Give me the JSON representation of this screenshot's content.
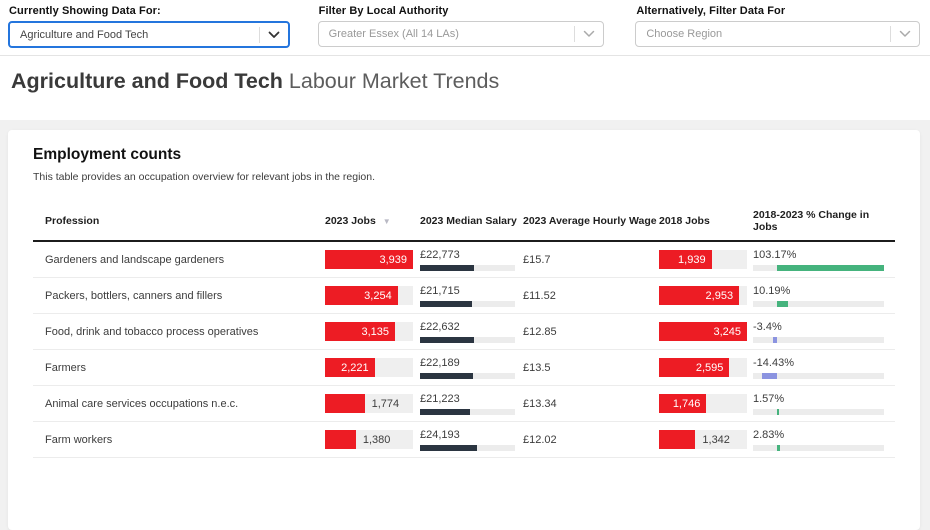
{
  "filters": {
    "sector": {
      "label": "Currently Showing Data For:",
      "value": "Agriculture and Food Tech"
    },
    "local_authority": {
      "label": "Filter By Local Authority",
      "value": "Greater Essex (All 14 LAs)"
    },
    "region": {
      "label": "Alternatively, Filter Data For",
      "placeholder": "Choose Region"
    }
  },
  "page_title": {
    "highlight": "Agriculture and Food Tech",
    "rest": " Labour Market Trends"
  },
  "card": {
    "title": "Employment counts",
    "subtitle": "This table provides an occupation overview for relevant jobs in the region."
  },
  "chart_data": {
    "type": "table",
    "columns": [
      "Profession",
      "2023 Jobs",
      "2023 Median Salary",
      "2023 Average Hourly Wage",
      "2018 Jobs",
      "2018-2023 % Change in Jobs"
    ],
    "sorted_by": "2023 Jobs",
    "sort_direction": "desc",
    "rows": [
      {
        "profession": "Gardeners and landscape gardeners",
        "jobs_2023": 3939,
        "jobs_2023_display": "3,939",
        "median_salary": 22773,
        "median_salary_display": "£22,773",
        "hourly_wage_display": "£15.7",
        "jobs_2018": 1939,
        "jobs_2018_display": "1,939",
        "pct_change": 103.17,
        "pct_change_display": "103.17%"
      },
      {
        "profession": "Packers, bottlers, canners and fillers",
        "jobs_2023": 3254,
        "jobs_2023_display": "3,254",
        "median_salary": 21715,
        "median_salary_display": "£21,715",
        "hourly_wage_display": "£11.52",
        "jobs_2018": 2953,
        "jobs_2018_display": "2,953",
        "pct_change": 10.19,
        "pct_change_display": "10.19%"
      },
      {
        "profession": "Food, drink and tobacco process operatives",
        "jobs_2023": 3135,
        "jobs_2023_display": "3,135",
        "median_salary": 22632,
        "median_salary_display": "£22,632",
        "hourly_wage_display": "£12.85",
        "jobs_2018": 3245,
        "jobs_2018_display": "3,245",
        "pct_change": -3.4,
        "pct_change_display": "-3.4%"
      },
      {
        "profession": "Farmers",
        "jobs_2023": 2221,
        "jobs_2023_display": "2,221",
        "median_salary": 22189,
        "median_salary_display": "£22,189",
        "hourly_wage_display": "£13.5",
        "jobs_2018": 2595,
        "jobs_2018_display": "2,595",
        "pct_change": -14.43,
        "pct_change_display": "-14.43%"
      },
      {
        "profession": "Animal care services occupations n.e.c.",
        "jobs_2023": 1774,
        "jobs_2023_display": "1,774",
        "median_salary": 21223,
        "median_salary_display": "£21,223",
        "hourly_wage_display": "£13.34",
        "jobs_2018": 1746,
        "jobs_2018_display": "1,746",
        "pct_change": 1.57,
        "pct_change_display": "1.57%"
      },
      {
        "profession": "Farm workers",
        "jobs_2023": 1380,
        "jobs_2023_display": "1,380",
        "median_salary": 24193,
        "median_salary_display": "£24,193",
        "hourly_wage_display": "£12.02",
        "jobs_2018": 1342,
        "jobs_2018_display": "1,342",
        "pct_change": 2.83,
        "pct_change_display": "2.83%"
      }
    ],
    "scales": {
      "jobs_2023_axis_max": 3939,
      "jobs_2018_axis_max": 3245,
      "salary_axis_max": 40000,
      "pct_axis_range": [
        -23.17,
        103.17
      ]
    }
  },
  "colors": {
    "jobs_bar_red": "#ed1c24",
    "salary_bar_dark": "#2b3541",
    "positive_green": "#45b37d",
    "negative_indigo": "#8b93e0",
    "focused_dropdown_blue": "#2475dd"
  }
}
